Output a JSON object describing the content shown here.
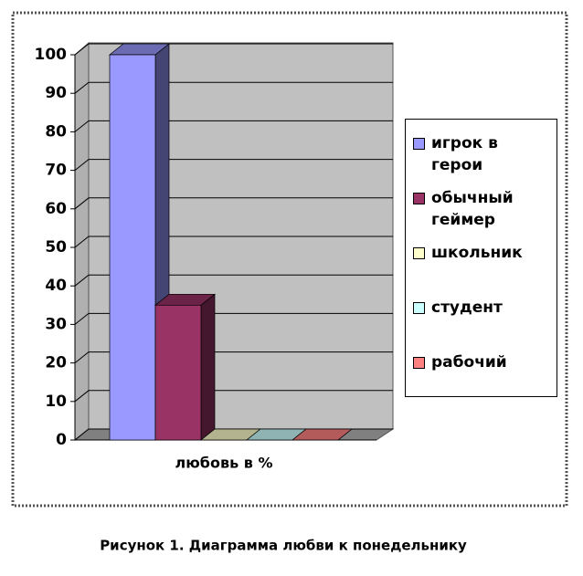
{
  "chart_data": {
    "type": "bar3d",
    "categories": [
      "любовь в %"
    ],
    "series": [
      {
        "name": "игрок в герои",
        "color": "#9999ff",
        "values": [
          100
        ]
      },
      {
        "name": "обычный геймер",
        "color": "#993366",
        "values": [
          35
        ]
      },
      {
        "name": "школьник",
        "color": "#ffffcc",
        "values": [
          0
        ]
      },
      {
        "name": "студент",
        "color": "#ccffff",
        "values": [
          0
        ]
      },
      {
        "name": "рабочий",
        "color": "#ff8080",
        "values": [
          0
        ]
      }
    ],
    "ylim": [
      0,
      100
    ],
    "yticks": [
      0,
      10,
      20,
      30,
      40,
      50,
      60,
      70,
      80,
      90,
      100
    ],
    "grid": true,
    "legend": "right",
    "caption": "Рисунок 1. Диаграмма любви к понедельнику"
  }
}
